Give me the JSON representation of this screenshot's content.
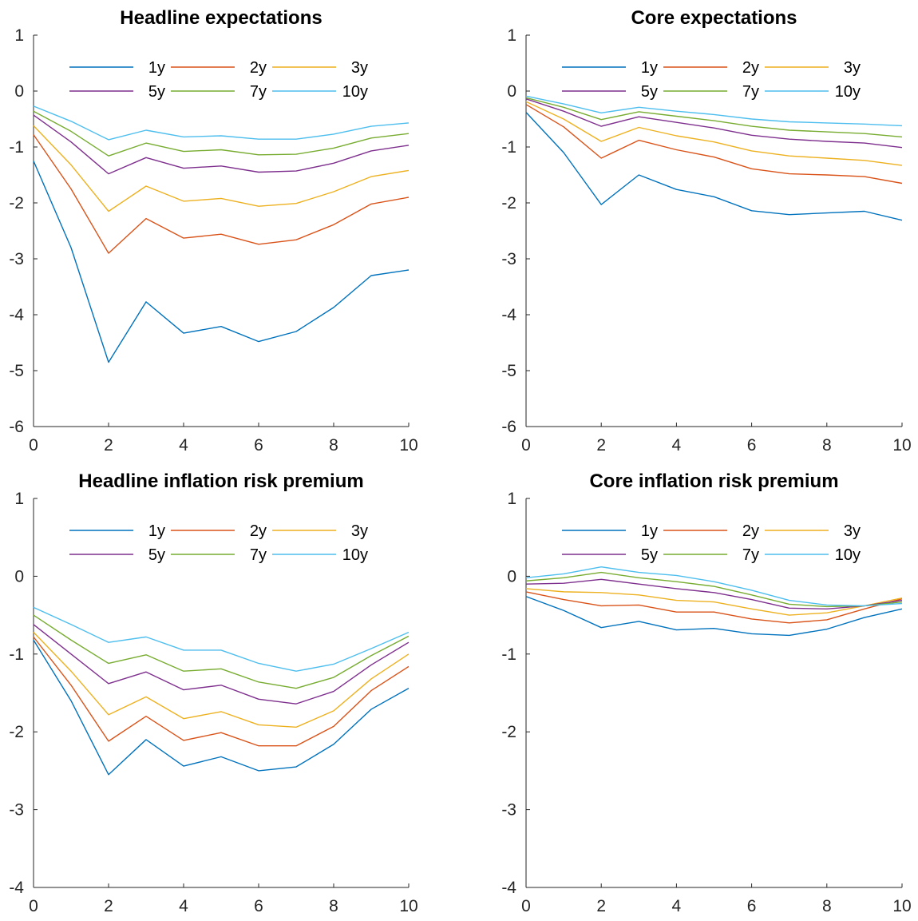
{
  "chart_data": [
    {
      "type": "line",
      "title": "Headline expectations",
      "xlabel": "",
      "ylabel": "",
      "xlim": [
        0,
        10
      ],
      "ylim": [
        -6,
        1
      ],
      "xticks": [
        0,
        2,
        4,
        6,
        8,
        10
      ],
      "yticks": [
        1,
        0,
        -1,
        -2,
        -3,
        -4,
        -5,
        -6
      ],
      "legend": "top-inside",
      "x": [
        0,
        1,
        2,
        3,
        4,
        5,
        6,
        7,
        8,
        9,
        10
      ],
      "series": [
        {
          "name": "1y",
          "color": "#0072BD",
          "values": [
            -1.25,
            -2.8,
            -4.85,
            -3.77,
            -4.33,
            -4.21,
            -4.48,
            -4.3,
            -3.87,
            -3.3,
            -3.2
          ]
        },
        {
          "name": "2y",
          "color": "#D95319",
          "values": [
            -0.78,
            -1.75,
            -2.9,
            -2.28,
            -2.63,
            -2.56,
            -2.74,
            -2.66,
            -2.39,
            -2.02,
            -1.9
          ]
        },
        {
          "name": "3y",
          "color": "#EDB120",
          "values": [
            -0.62,
            -1.32,
            -2.15,
            -1.7,
            -1.97,
            -1.92,
            -2.06,
            -2.01,
            -1.8,
            -1.53,
            -1.42
          ]
        },
        {
          "name": "5y",
          "color": "#7E2F8E",
          "values": [
            -0.43,
            -0.91,
            -1.48,
            -1.19,
            -1.38,
            -1.34,
            -1.45,
            -1.43,
            -1.29,
            -1.07,
            -0.97
          ]
        },
        {
          "name": "7y",
          "color": "#77AC30",
          "values": [
            -0.36,
            -0.72,
            -1.16,
            -0.93,
            -1.08,
            -1.05,
            -1.14,
            -1.13,
            -1.02,
            -0.84,
            -0.76
          ]
        },
        {
          "name": "10y",
          "color": "#4DBEEE",
          "values": [
            -0.27,
            -0.54,
            -0.87,
            -0.7,
            -0.82,
            -0.8,
            -0.86,
            -0.86,
            -0.77,
            -0.63,
            -0.57
          ]
        }
      ]
    },
    {
      "type": "line",
      "title": "Core expectations",
      "xlabel": "",
      "ylabel": "",
      "xlim": [
        0,
        10
      ],
      "ylim": [
        -6,
        1
      ],
      "xticks": [
        0,
        2,
        4,
        6,
        8,
        10
      ],
      "yticks": [
        1,
        0,
        -1,
        -2,
        -3,
        -4,
        -5,
        -6
      ],
      "legend": "top-inside",
      "x": [
        0,
        1,
        2,
        3,
        4,
        5,
        6,
        7,
        8,
        9,
        10
      ],
      "series": [
        {
          "name": "1y",
          "color": "#0072BD",
          "values": [
            -0.38,
            -1.1,
            -2.03,
            -1.5,
            -1.76,
            -1.89,
            -2.14,
            -2.21,
            -2.18,
            -2.15,
            -2.31
          ]
        },
        {
          "name": "2y",
          "color": "#D95319",
          "values": [
            -0.24,
            -0.64,
            -1.2,
            -0.88,
            -1.05,
            -1.18,
            -1.39,
            -1.48,
            -1.5,
            -1.53,
            -1.65
          ]
        },
        {
          "name": "3y",
          "color": "#EDB120",
          "values": [
            -0.19,
            -0.5,
            -0.9,
            -0.65,
            -0.8,
            -0.91,
            -1.07,
            -1.16,
            -1.2,
            -1.24,
            -1.33
          ]
        },
        {
          "name": "5y",
          "color": "#7E2F8E",
          "values": [
            -0.14,
            -0.36,
            -0.63,
            -0.46,
            -0.56,
            -0.66,
            -0.79,
            -0.86,
            -0.9,
            -0.93,
            -1.01
          ]
        },
        {
          "name": "7y",
          "color": "#77AC30",
          "values": [
            -0.12,
            -0.29,
            -0.51,
            -0.37,
            -0.45,
            -0.53,
            -0.63,
            -0.7,
            -0.73,
            -0.76,
            -0.82
          ]
        },
        {
          "name": "10y",
          "color": "#4DBEEE",
          "values": [
            -0.09,
            -0.23,
            -0.39,
            -0.29,
            -0.36,
            -0.42,
            -0.5,
            -0.55,
            -0.57,
            -0.59,
            -0.62
          ]
        }
      ]
    },
    {
      "type": "line",
      "title": "Headline inflation risk premium",
      "xlabel": "",
      "ylabel": "",
      "xlim": [
        0,
        10
      ],
      "ylim": [
        -4,
        1
      ],
      "xticks": [
        0,
        2,
        4,
        6,
        8,
        10
      ],
      "yticks": [
        1,
        0,
        -1,
        -2,
        -3,
        -4
      ],
      "legend": "top-inside",
      "x": [
        0,
        1,
        2,
        3,
        4,
        5,
        6,
        7,
        8,
        9,
        10
      ],
      "series": [
        {
          "name": "1y",
          "color": "#0072BD",
          "values": [
            -0.82,
            -1.6,
            -2.55,
            -2.1,
            -2.44,
            -2.32,
            -2.5,
            -2.45,
            -2.16,
            -1.71,
            -1.44
          ]
        },
        {
          "name": "2y",
          "color": "#D95319",
          "values": [
            -0.78,
            -1.4,
            -2.12,
            -1.8,
            -2.11,
            -2.01,
            -2.18,
            -2.18,
            -1.93,
            -1.47,
            -1.16
          ]
        },
        {
          "name": "3y",
          "color": "#EDB120",
          "values": [
            -0.72,
            -1.22,
            -1.78,
            -1.55,
            -1.83,
            -1.74,
            -1.91,
            -1.94,
            -1.73,
            -1.32,
            -1.0
          ]
        },
        {
          "name": "5y",
          "color": "#7E2F8E",
          "values": [
            -0.62,
            -1.0,
            -1.38,
            -1.23,
            -1.46,
            -1.4,
            -1.58,
            -1.64,
            -1.48,
            -1.14,
            -0.85
          ]
        },
        {
          "name": "7y",
          "color": "#77AC30",
          "values": [
            -0.5,
            -0.82,
            -1.12,
            -1.01,
            -1.22,
            -1.19,
            -1.36,
            -1.44,
            -1.3,
            -1.02,
            -0.77
          ]
        },
        {
          "name": "10y",
          "color": "#4DBEEE",
          "values": [
            -0.4,
            -0.62,
            -0.85,
            -0.78,
            -0.95,
            -0.95,
            -1.12,
            -1.22,
            -1.13,
            -0.93,
            -0.72
          ]
        }
      ]
    },
    {
      "type": "line",
      "title": "Core inflation risk premium",
      "xlabel": "",
      "ylabel": "",
      "xlim": [
        0,
        10
      ],
      "ylim": [
        -4,
        1
      ],
      "xticks": [
        0,
        2,
        4,
        6,
        8,
        10
      ],
      "yticks": [
        1,
        0,
        -1,
        -2,
        -3,
        -4
      ],
      "legend": "top-inside",
      "x": [
        0,
        1,
        2,
        3,
        4,
        5,
        6,
        7,
        8,
        9,
        10
      ],
      "series": [
        {
          "name": "1y",
          "color": "#0072BD",
          "values": [
            -0.26,
            -0.44,
            -0.66,
            -0.58,
            -0.69,
            -0.67,
            -0.74,
            -0.76,
            -0.68,
            -0.53,
            -0.42
          ]
        },
        {
          "name": "2y",
          "color": "#D95319",
          "values": [
            -0.2,
            -0.3,
            -0.38,
            -0.37,
            -0.46,
            -0.46,
            -0.55,
            -0.6,
            -0.56,
            -0.42,
            -0.29
          ]
        },
        {
          "name": "3y",
          "color": "#EDB120",
          "values": [
            -0.16,
            -0.2,
            -0.21,
            -0.24,
            -0.31,
            -0.33,
            -0.42,
            -0.5,
            -0.47,
            -0.38,
            -0.28
          ]
        },
        {
          "name": "5y",
          "color": "#7E2F8E",
          "values": [
            -0.1,
            -0.09,
            -0.04,
            -0.1,
            -0.16,
            -0.21,
            -0.3,
            -0.41,
            -0.42,
            -0.38,
            -0.31
          ]
        },
        {
          "name": "7y",
          "color": "#77AC30",
          "values": [
            -0.06,
            -0.02,
            0.05,
            -0.02,
            -0.07,
            -0.13,
            -0.24,
            -0.36,
            -0.39,
            -0.38,
            -0.33
          ]
        },
        {
          "name": "10y",
          "color": "#4DBEEE",
          "values": [
            -0.02,
            0.03,
            0.12,
            0.05,
            0.01,
            -0.07,
            -0.18,
            -0.31,
            -0.37,
            -0.38,
            -0.35
          ]
        }
      ]
    }
  ]
}
